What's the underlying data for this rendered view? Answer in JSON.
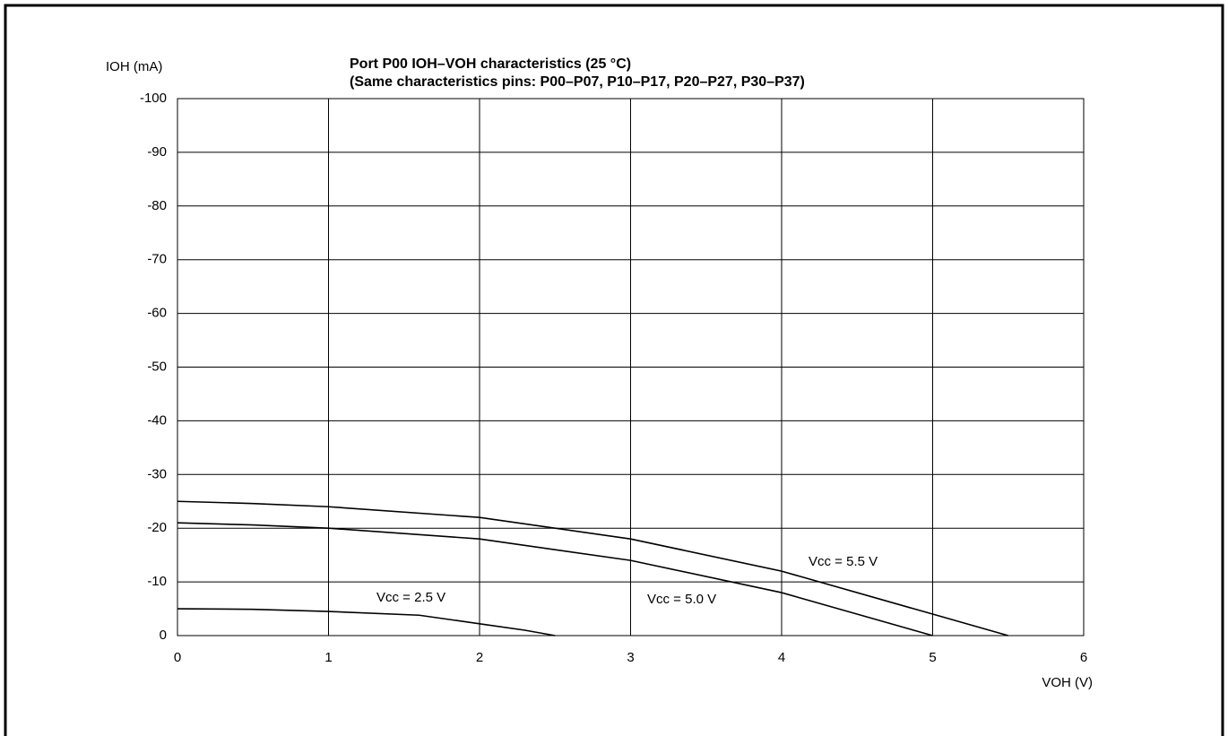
{
  "chart_data": {
    "type": "line",
    "title": "Port P00 IOH–VOH characteristics (25 °C)",
    "subtitle": "(Same characteristics pins: P00–P07, P10–P17, P20–P27, P30–P37)",
    "y_label": "IOH (mA)",
    "x_label": "VOH (V)",
    "xlim": [
      0,
      6
    ],
    "xticks": [
      0,
      1,
      2,
      3,
      4,
      5,
      6
    ],
    "ylim": [
      0,
      -100
    ],
    "yticks": [
      0,
      -10,
      -20,
      -30,
      -40,
      -50,
      -60,
      -70,
      -80,
      -90,
      -100
    ],
    "grid": true,
    "series": [
      {
        "name": "Vcc = 2.5 V",
        "color": "#000000",
        "x": [
          0,
          0.5,
          1,
          1.6,
          2,
          2.3,
          2.5
        ],
        "values": [
          -5,
          -4.9,
          -4.5,
          -3.8,
          -2.2,
          -1,
          0
        ]
      },
      {
        "name": "Vcc = 5.0 V",
        "color": "#000000",
        "x": [
          0,
          0.5,
          1,
          2,
          3,
          4,
          5
        ],
        "values": [
          -21,
          -20.6,
          -20,
          -18,
          -14,
          -8,
          0
        ]
      },
      {
        "name": "Vcc = 5.5 V",
        "color": "#000000",
        "x": [
          0,
          0.5,
          1,
          2,
          3,
          4,
          5,
          5.5
        ],
        "values": [
          -25,
          -24.6,
          -24,
          -22,
          -18,
          -12,
          -4,
          0
        ]
      }
    ]
  }
}
